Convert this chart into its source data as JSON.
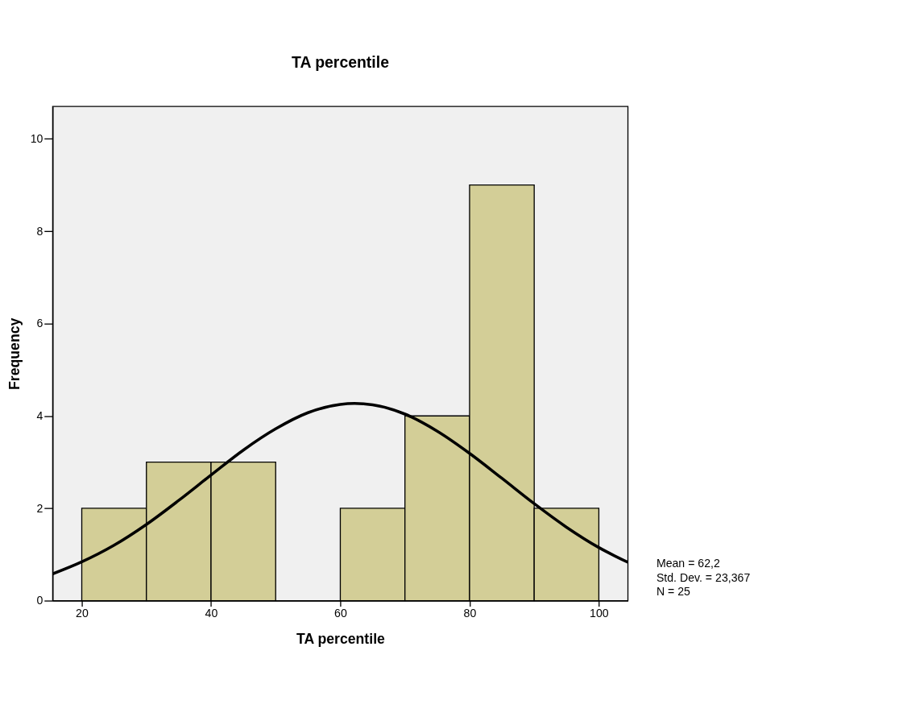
{
  "chart_data": {
    "type": "histogram",
    "title": "TA percentile",
    "xlabel": "TA percentile",
    "ylabel": "Frequency",
    "bins": [
      20,
      30,
      40,
      50,
      60,
      70,
      80,
      90,
      100
    ],
    "values": [
      2,
      3,
      3,
      0,
      2,
      4,
      9,
      2
    ],
    "color": "#d3ce97",
    "series": [
      {
        "type": "line",
        "color": "#000000",
        "x": [
          15.5,
          20,
          25,
          30,
          35,
          40,
          45,
          50,
          55,
          60,
          62.2,
          65,
          70,
          75,
          80,
          85,
          90,
          95,
          100,
          104.5
        ],
        "values": [
          0.58,
          0.84,
          1.2,
          1.65,
          2.17,
          2.72,
          3.26,
          3.72,
          4.07,
          4.25,
          4.27,
          4.24,
          4.04,
          3.67,
          3.19,
          2.65,
          2.1,
          1.59,
          1.15,
          0.83
        ]
      }
    ],
    "xlim": [
      15.5,
      104.5
    ],
    "ylim": [
      0,
      10.7
    ],
    "xticks": [
      20,
      40,
      60,
      80,
      100
    ],
    "yticks": [
      0,
      2,
      4,
      6,
      8,
      10
    ],
    "grid": false,
    "annotations": [
      "Mean = 62,2",
      "Std. Dev. = 23,367",
      "N = 25"
    ]
  }
}
